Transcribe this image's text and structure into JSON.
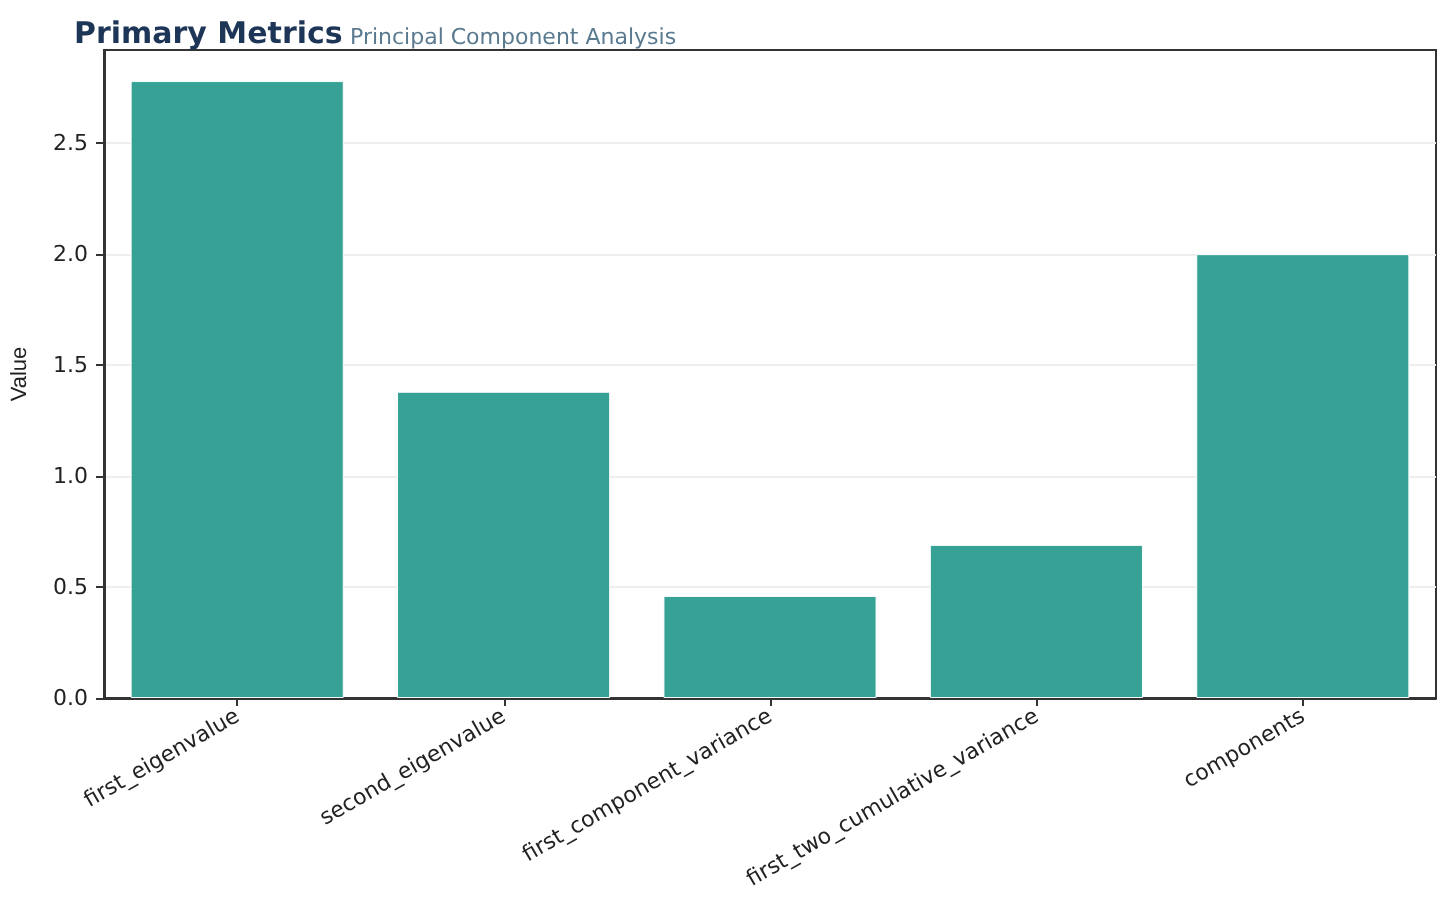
{
  "chart_data": {
    "type": "bar",
    "title": "Primary Metrics",
    "subtitle": "Principal Component Analysis",
    "ylabel": "Value",
    "categories": [
      "first_eigenvalue",
      "second_eigenvalue",
      "first_component_variance",
      "first_two_cumulative_variance",
      "components"
    ],
    "values": [
      2.78,
      1.38,
      0.46,
      0.69,
      2.0
    ],
    "color": "#2a9d8f",
    "ylim": [
      0,
      2.92
    ],
    "yticks": [
      {
        "value": 0,
        "label": "0.0"
      },
      {
        "value": 0.5,
        "label": "0.5"
      },
      {
        "value": 1,
        "label": "1.0"
      },
      {
        "value": 1.5,
        "label": "1.5"
      },
      {
        "value": 2,
        "label": "2.0"
      },
      {
        "value": 2.5,
        "label": "2.5"
      }
    ],
    "grid": "y"
  }
}
